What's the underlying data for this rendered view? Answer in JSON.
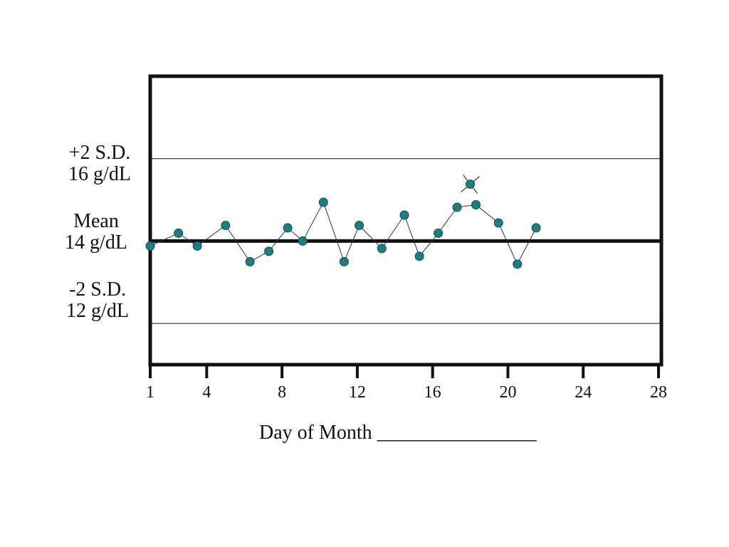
{
  "chart_data": {
    "type": "line",
    "title": "",
    "xlabel": "Day of Month ________________",
    "ylabel": "",
    "x_ticks": [
      1,
      4,
      8,
      12,
      16,
      20,
      24,
      28
    ],
    "xlim": [
      1,
      28
    ],
    "ylim": [
      11.0,
      18.0
    ],
    "grid": false,
    "reference_lines": [
      {
        "name": "+2 S.D.",
        "value_label": "16 g/dL",
        "y": 16
      },
      {
        "name": "Mean",
        "value_label": "14 g/dL",
        "y": 14
      },
      {
        "name": "-2 S.D.",
        "value_label": "12 g/dL",
        "y": 12
      }
    ],
    "series": [
      {
        "x": [
          1,
          2.5,
          3.5,
          5,
          6.3,
          7.3,
          8.3,
          9.1,
          10.2,
          11.3,
          12.1,
          13.3,
          14.5,
          15.3,
          16.3,
          17.3,
          18.3,
          19.5,
          20.5,
          21.5
        ],
        "y": [
          13.88,
          14.19,
          13.88,
          14.38,
          13.5,
          13.75,
          14.32,
          14.0,
          14.94,
          13.5,
          14.38,
          13.82,
          14.63,
          13.63,
          14.19,
          14.82,
          14.88,
          14.44,
          13.44,
          14.32
        ]
      }
    ],
    "flagged_points": [
      {
        "x": 18.0,
        "y": 15.38
      }
    ],
    "colors": {
      "marker": "#1a7f80",
      "marker_outline": "#0d4f50",
      "line": "#333333",
      "frame": "#111111"
    }
  }
}
